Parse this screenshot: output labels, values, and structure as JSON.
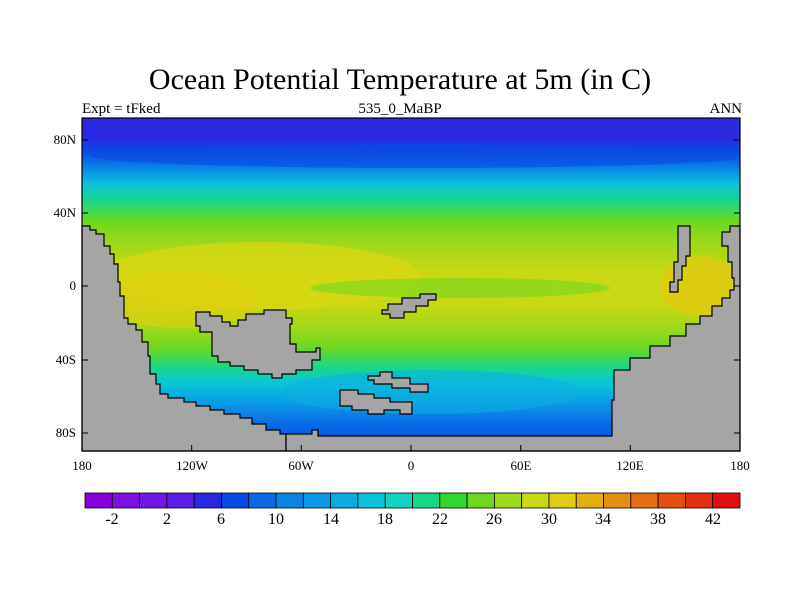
{
  "title": "Ocean Potential Temperature at 5m (in C)",
  "left_label": "Expt = tFked",
  "center_label": "535_0_MaBP",
  "right_label": "ANN",
  "y_ticks": [
    "80N",
    "40N",
    "0",
    "40S",
    "80S"
  ],
  "x_ticks": [
    "180",
    "120W",
    "60W",
    "0",
    "60E",
    "120E",
    "180"
  ],
  "colorbar": {
    "labels": [
      "-2",
      "2",
      "6",
      "10",
      "14",
      "18",
      "22",
      "26",
      "30",
      "34",
      "38",
      "42"
    ],
    "colors": [
      "#8a00d8",
      "#7f10e0",
      "#7018e4",
      "#5a1ee6",
      "#2a28e0",
      "#0a4ae4",
      "#0a6ae6",
      "#0a84e4",
      "#0a98e6",
      "#0aace2",
      "#0ac4dc",
      "#10d4c0",
      "#18d888",
      "#30d830",
      "#6cd820",
      "#a0d81a",
      "#c8d812",
      "#e0cc10",
      "#e4b010",
      "#e49010",
      "#e46e10",
      "#e45010",
      "#e43010",
      "#e01010"
    ]
  },
  "colors": {
    "land": "#a5a5a5",
    "frame": "#000000"
  }
}
